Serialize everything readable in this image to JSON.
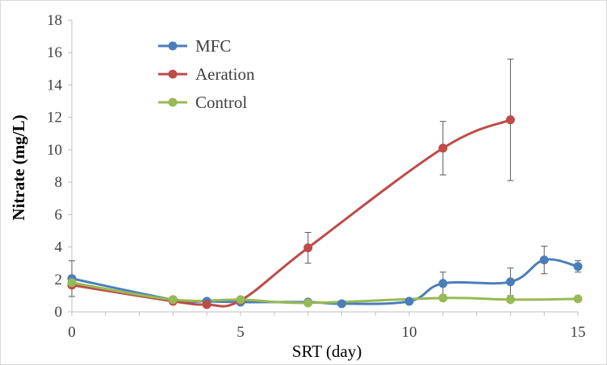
{
  "chart_data": {
    "type": "line",
    "title": "",
    "xlabel": "SRT (day)",
    "ylabel": "Nitrate (mg/L)",
    "xlim": [
      0,
      15
    ],
    "ylim": [
      0,
      18
    ],
    "xticks": [
      0,
      5,
      10,
      15
    ],
    "yticks": [
      0,
      2,
      4,
      6,
      8,
      10,
      12,
      14,
      16,
      18
    ],
    "grid": false,
    "legend_position": "top-left",
    "smooth_lines": true,
    "series": [
      {
        "name": "MFC",
        "color": "#4a7ebb",
        "x": [
          0,
          3,
          4,
          5,
          7,
          8,
          10,
          11,
          13,
          14,
          15
        ],
        "y": [
          2.05,
          0.75,
          0.65,
          0.6,
          0.6,
          0.5,
          0.65,
          1.75,
          1.85,
          3.2,
          2.8
        ],
        "error": [
          1.1,
          0,
          0,
          0,
          0,
          0,
          0,
          0.7,
          0.85,
          0.85,
          0.35
        ]
      },
      {
        "name": "Aeration",
        "color": "#be4b48",
        "x": [
          0,
          3,
          4,
          5,
          7,
          11,
          13
        ],
        "y": [
          1.65,
          0.65,
          0.45,
          0.7,
          3.95,
          10.1,
          11.85
        ],
        "error": [
          0,
          0,
          0,
          0,
          0.95,
          1.65,
          3.75
        ]
      },
      {
        "name": "Control",
        "color": "#98b954",
        "x": [
          0,
          3,
          5,
          7,
          11,
          13,
          15
        ],
        "y": [
          1.8,
          0.75,
          0.75,
          0.55,
          0.85,
          0.75,
          0.8
        ],
        "error": [
          0,
          0,
          0,
          0,
          0,
          0,
          0
        ]
      }
    ]
  }
}
